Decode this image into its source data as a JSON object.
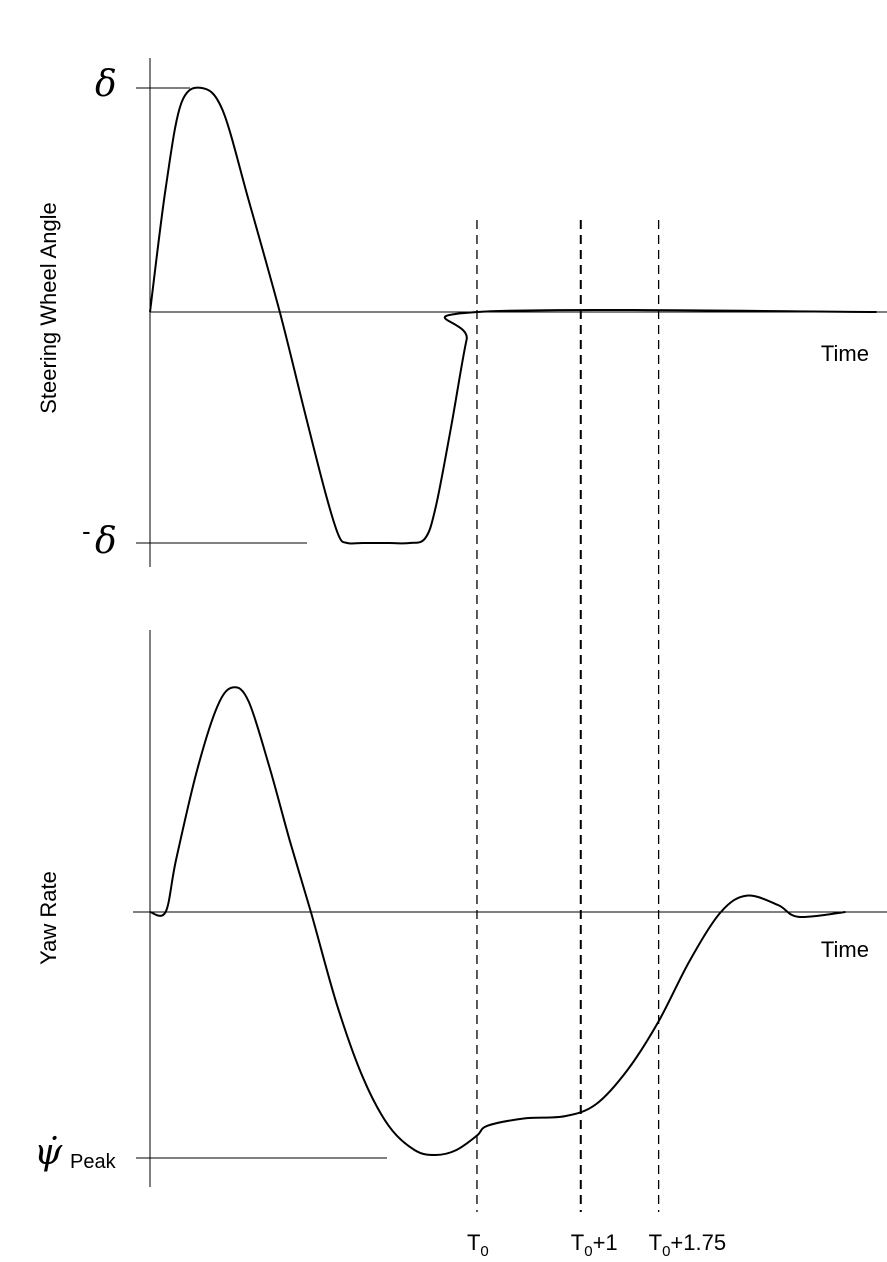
{
  "chart_data": [
    {
      "type": "line",
      "ylabel": "Steering Wheel Angle",
      "xlabel": "Time",
      "y_ticks": {
        "top": "δ",
        "bottom_prefix": "-",
        "bottom": "δ"
      },
      "ylim": [
        -1,
        1
      ],
      "series": [
        {
          "values_note_free": true,
          "points": [
            [
              0,
              0
            ],
            [
              0.15,
              0.55
            ],
            [
              0.3,
              0.93
            ],
            [
              0.5,
              1.0
            ],
            [
              0.7,
              0.9
            ],
            [
              0.95,
              0.5
            ],
            [
              1.25,
              0.0
            ],
            [
              1.5,
              -0.45
            ],
            [
              1.7,
              -0.8
            ],
            [
              1.82,
              -0.97
            ],
            [
              1.9,
              -1.0
            ],
            [
              2.05,
              -1.0
            ],
            [
              2.3,
              -1.0
            ],
            [
              2.5,
              -1.0
            ],
            [
              2.65,
              -0.98
            ],
            [
              2.75,
              -0.85
            ],
            [
              2.9,
              -0.5
            ],
            [
              3.05,
              -0.12
            ],
            [
              3.15,
              0.0
            ],
            [
              7.0,
              0.0
            ]
          ]
        }
      ]
    },
    {
      "type": "line",
      "ylabel": "Yaw Rate",
      "xlabel": "Time",
      "y_ticks": {
        "peak_symbol": "ψ̇",
        "peak_subscript": "Peak"
      },
      "ylim": [
        -1,
        1
      ],
      "series": [
        {
          "points": [
            [
              0,
              0
            ],
            [
              0.15,
              0.0
            ],
            [
              0.25,
              0.22
            ],
            [
              0.45,
              0.6
            ],
            [
              0.65,
              0.88
            ],
            [
              0.8,
              0.96
            ],
            [
              0.95,
              0.9
            ],
            [
              1.15,
              0.62
            ],
            [
              1.35,
              0.3
            ],
            [
              1.55,
              0.0
            ],
            [
              1.8,
              -0.38
            ],
            [
              2.05,
              -0.68
            ],
            [
              2.3,
              -0.88
            ],
            [
              2.55,
              -0.98
            ],
            [
              2.75,
              -1.0
            ],
            [
              2.95,
              -0.98
            ],
            [
              3.15,
              -0.92
            ],
            [
              3.25,
              -0.88
            ],
            [
              3.6,
              -0.85
            ],
            [
              4.0,
              -0.84
            ],
            [
              4.3,
              -0.79
            ],
            [
              4.6,
              -0.65
            ],
            [
              4.9,
              -0.45
            ],
            [
              5.2,
              -0.2
            ],
            [
              5.5,
              0.0
            ],
            [
              5.75,
              0.07
            ],
            [
              6.05,
              0.03
            ],
            [
              6.25,
              -0.02
            ],
            [
              6.7,
              0.0
            ]
          ]
        }
      ]
    }
  ],
  "markers": [
    {
      "x": 3.15,
      "base": "T",
      "sub": "0",
      "suffix": ""
    },
    {
      "x": 4.15,
      "base": "T",
      "sub": "0",
      "suffix": "+1"
    },
    {
      "x": 4.9,
      "base": "T",
      "sub": "0",
      "suffix": "+1.75"
    }
  ]
}
